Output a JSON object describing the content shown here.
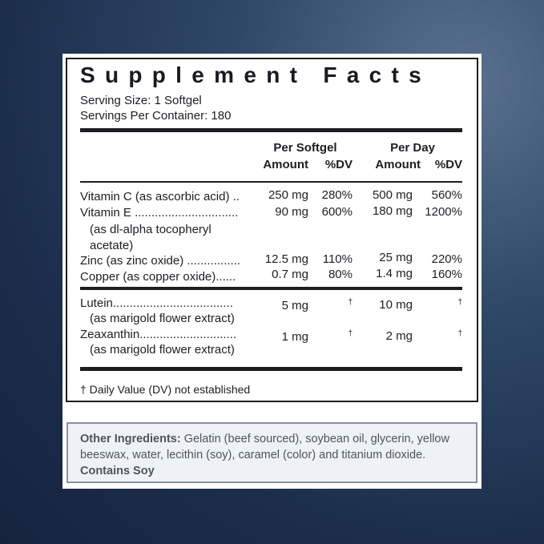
{
  "title": "Supplement Facts",
  "serving_size": "Serving Size: 1 Softgel",
  "servings_per_container": "Servings Per Container: 180",
  "headers": {
    "per_softgel": "Per Softgel",
    "per_day": "Per Day",
    "amount": "Amount",
    "dv": "%DV"
  },
  "rows": [
    {
      "name": "Vitamin C (as ascorbic acid) ..",
      "amount": "250 mg",
      "dv": "280%",
      "day_amount": "500 mg",
      "day_dv": "560%"
    },
    {
      "name": "Vitamin E ...............................",
      "sub1": "(as dl-alpha tocopheryl",
      "sub2": "acetate)",
      "amount": "90 mg",
      "dv": "600%",
      "day_amount": "180 mg",
      "day_dv": "1200%"
    },
    {
      "name": "Zinc (as zinc oxide) ................",
      "amount": "12.5 mg",
      "dv": "110%",
      "day_amount": "25 mg",
      "day_dv": "220%"
    },
    {
      "name": "Copper (as copper oxide)......",
      "amount": "0.7 mg",
      "dv": "80%",
      "day_amount": "1.4 mg",
      "day_dv": "160%"
    },
    {
      "name": "Lutein....................................",
      "sub1": "(as marigold flower extract)",
      "amount": "5 mg",
      "dv": "†",
      "day_amount": "10 mg",
      "day_dv": "†"
    },
    {
      "name": "Zeaxanthin.............................",
      "sub1": "(as marigold flower extract)",
      "amount": "1 mg",
      "dv": "†",
      "day_amount": "2 mg",
      "day_dv": "†"
    }
  ],
  "footnote": "† Daily Value (DV) not established",
  "other_ingredients": {
    "label": "Other Ingredients:",
    "text": " Gelatin (beef sourced), soybean oil, glycerin, yellow beeswax, water, lecithin (soy), caramel (color) and titanium dioxide.",
    "contains": "Contains Soy"
  },
  "colors": {
    "background": "#1c2e4c",
    "ink": "#1e1e22",
    "other_box_bg": "#eef2f7"
  }
}
